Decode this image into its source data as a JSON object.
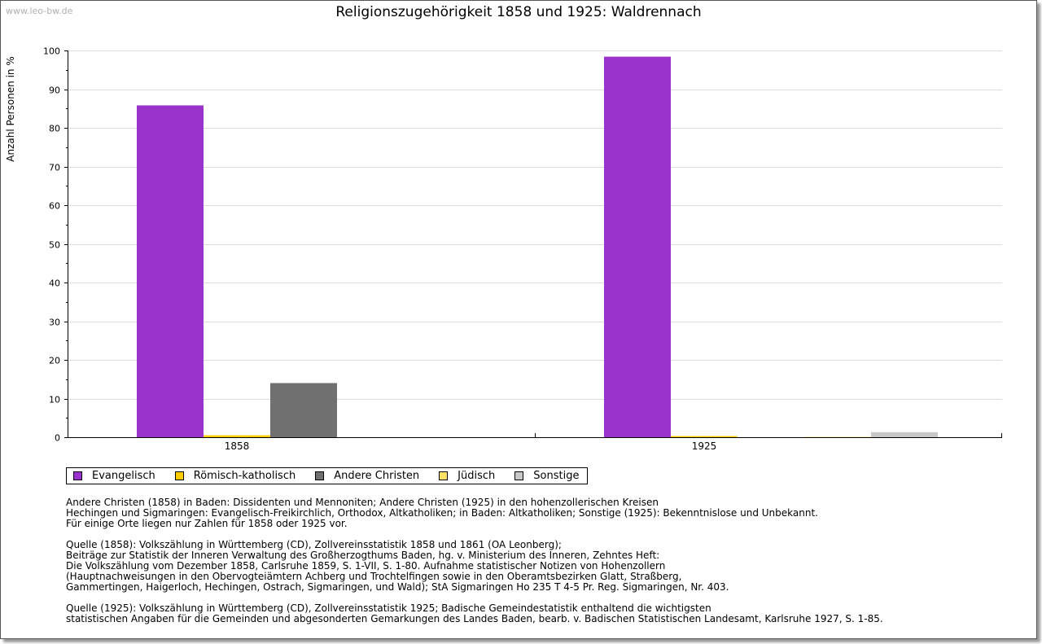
{
  "watermark": "www.leo-bw.de",
  "chart_data": {
    "type": "bar",
    "title": "Religionszugehörigkeit 1858 und 1925: Waldrennach",
    "xlabel": "",
    "ylabel": "Anzahl Personen in %",
    "ylim": [
      0,
      100
    ],
    "yticks": [
      0,
      10,
      20,
      30,
      40,
      50,
      60,
      70,
      80,
      90,
      100
    ],
    "categories": [
      "1858",
      "1925"
    ],
    "grid": true,
    "legend_position": "bottom-left",
    "series": [
      {
        "name": "Evangelisch",
        "color": "#9933cc",
        "values": [
          85.8,
          98.4
        ]
      },
      {
        "name": "Römisch-katholisch",
        "color": "#ffcc00",
        "values": [
          0.5,
          0.3
        ]
      },
      {
        "name": "Andere Christen",
        "color": "#707070",
        "values": [
          14.0,
          0.0
        ]
      },
      {
        "name": "Jüdisch",
        "color": "#ffe066",
        "values": [
          0.0,
          0.1
        ]
      },
      {
        "name": "Sonstige",
        "color": "#c8c8c8",
        "values": [
          0.0,
          1.3
        ]
      }
    ]
  },
  "notes": [
    [
      "Andere Christen (1858) in Baden: Dissidenten und Mennoniten; Andere Christen (1925) in den hohenzollerischen Kreisen",
      "Hechingen und Sigmaringen: Evangelisch-Freikirchlich, Orthodox, Altkatholiken; in Baden: Altkatholiken; Sonstige (1925): Bekenntnislose und Unbekannt.",
      "Für einige Orte liegen nur Zahlen für 1858 oder 1925 vor."
    ],
    [
      "Quelle (1858): Volkszählung in Württemberg (CD), Zollvereinsstatistik 1858 und 1861 (OA Leonberg);",
      "Beiträge zur Statistik der Inneren Verwaltung des Großherzogthums Baden, hg. v. Ministerium des Inneren, Zehntes Heft:",
      "Die Volkszählung vom Dezember 1858, Carlsruhe 1859, S. 1-VII, S. 1-80. Aufnahme statistischer Notizen von Hohenzollern",
      "(Hauptnachweisungen in den Obervogteiämtern Achberg und Trochtelfingen sowie in den Oberamtsbezirken Glatt, Straßberg,",
      "Gammertingen, Haigerloch, Hechingen, Ostrach, Sigmaringen, und Wald); StA Sigmaringen Ho 235 T 4-5 Pr. Reg. Sigmaringen, Nr. 403."
    ],
    [
      "Quelle (1925): Volkszählung in Württemberg (CD), Zollvereinsstatistik 1925; Badische Gemeindestatistik enthaltend die wichtigsten",
      "statistischen Angaben für die Gemeinden und abgesonderten Gemarkungen des Landes Baden, bearb. v. Badischen Statistischen Landesamt, Karlsruhe 1927, S. 1-85."
    ]
  ]
}
